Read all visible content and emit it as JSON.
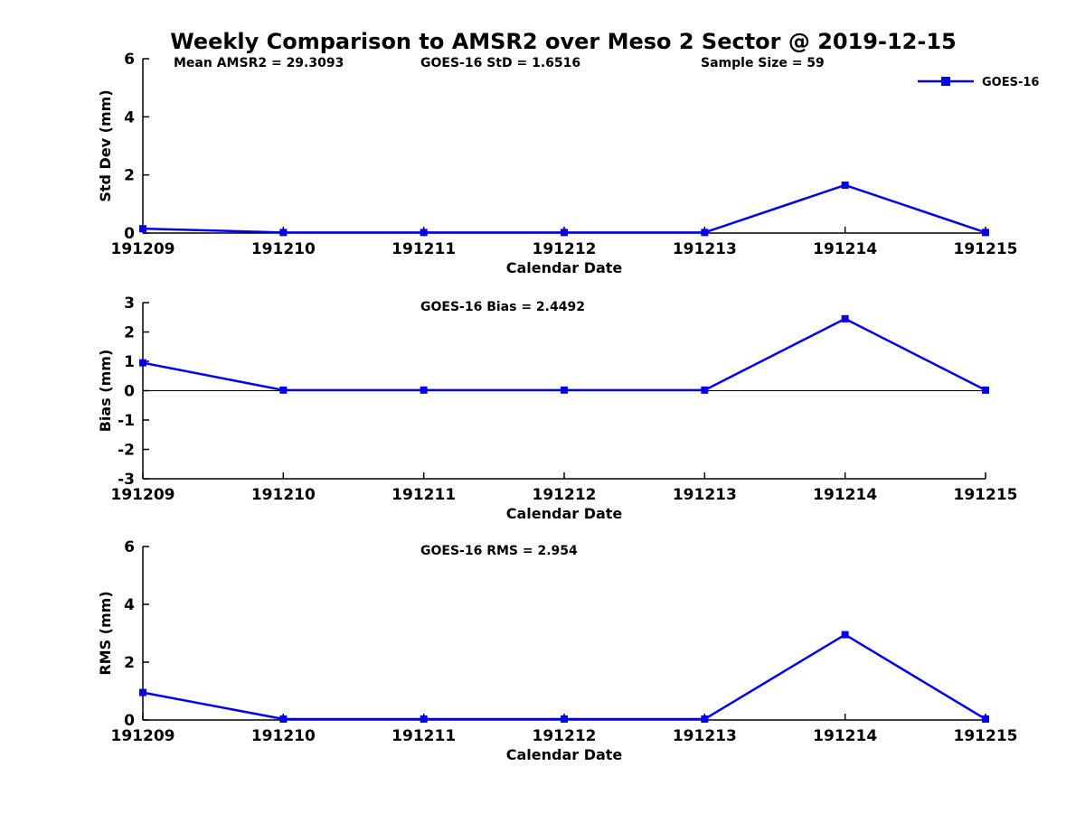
{
  "title": "Weekly Comparison to AMSR2 over Meso 2 Sector @ 2019-12-15",
  "legend": {
    "label": "GOES-16",
    "color": "#0000EE"
  },
  "chart_data": [
    {
      "type": "line",
      "categories": [
        "191209",
        "191210",
        "191211",
        "191212",
        "191213",
        "191214",
        "191215"
      ],
      "series": [
        {
          "name": "GOES-16",
          "values": [
            0.15,
            0.02,
            0.02,
            0.02,
            0.02,
            1.65,
            0.02
          ]
        }
      ],
      "xlabel": "Calendar Date",
      "ylabel": "Std Dev (mm)",
      "ylim": [
        0,
        6
      ],
      "yticks": [
        0,
        2,
        4,
        6
      ],
      "grid": false,
      "legend_position": "top-right",
      "annotations": [
        "Mean AMSR2 = 29.3093",
        "GOES-16 StD = 1.6516",
        "Sample Size = 59"
      ],
      "line_color": "#0000EE",
      "marker": "filled-square"
    },
    {
      "type": "line",
      "categories": [
        "191209",
        "191210",
        "191211",
        "191212",
        "191213",
        "191214",
        "191215"
      ],
      "series": [
        {
          "name": "GOES-16",
          "values": [
            0.95,
            0.02,
            0.02,
            0.02,
            0.02,
            2.45,
            0.02
          ]
        }
      ],
      "xlabel": "Calendar Date",
      "ylabel": "Bias (mm)",
      "ylim": [
        -3,
        3
      ],
      "yticks": [
        -3,
        -2,
        -1,
        0,
        1,
        2,
        3
      ],
      "grid": false,
      "zero_line": true,
      "annotations": [
        "GOES-16 Bias  = 2.4492"
      ],
      "line_color": "#0000EE",
      "marker": "filled-square"
    },
    {
      "type": "line",
      "categories": [
        "191209",
        "191210",
        "191211",
        "191212",
        "191213",
        "191214",
        "191215"
      ],
      "series": [
        {
          "name": "GOES-16",
          "values": [
            0.95,
            0.03,
            0.03,
            0.03,
            0.03,
            2.95,
            0.03
          ]
        }
      ],
      "xlabel": "Calendar Date",
      "ylabel": "RMS (mm)",
      "ylim": [
        0,
        6
      ],
      "yticks": [
        0,
        2,
        4,
        6
      ],
      "grid": false,
      "annotations": [
        "GOES-16 RMS = 2.954"
      ],
      "line_color": "#0000EE",
      "marker": "filled-square"
    }
  ]
}
